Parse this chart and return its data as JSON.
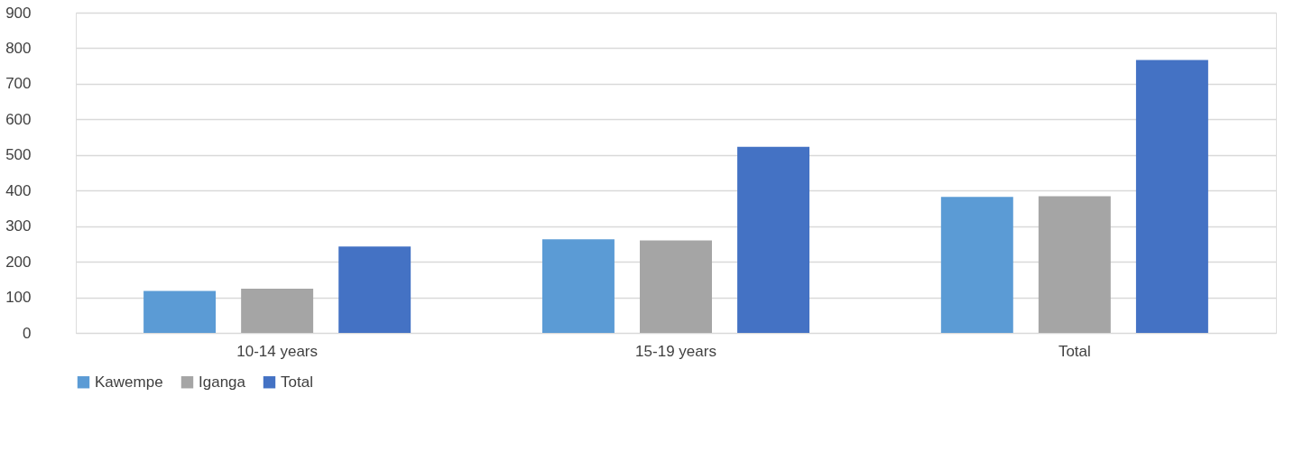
{
  "chart_data": {
    "type": "bar",
    "categories": [
      "10-14 years",
      "15-19 years",
      "Total"
    ],
    "series": [
      {
        "name": "Kawempe",
        "color": "#5b9bd5",
        "values": [
          118,
          263,
          382
        ]
      },
      {
        "name": "Iganga",
        "color": "#a5a5a5",
        "values": [
          124,
          260,
          384
        ]
      },
      {
        "name": "Total",
        "color": "#4472c4",
        "values": [
          243,
          523,
          767
        ]
      }
    ],
    "ylim": [
      0,
      900
    ],
    "yticks": [
      0,
      100,
      200,
      300,
      400,
      500,
      600,
      700,
      800,
      900
    ],
    "grid": "y",
    "legend": "bottom"
  }
}
